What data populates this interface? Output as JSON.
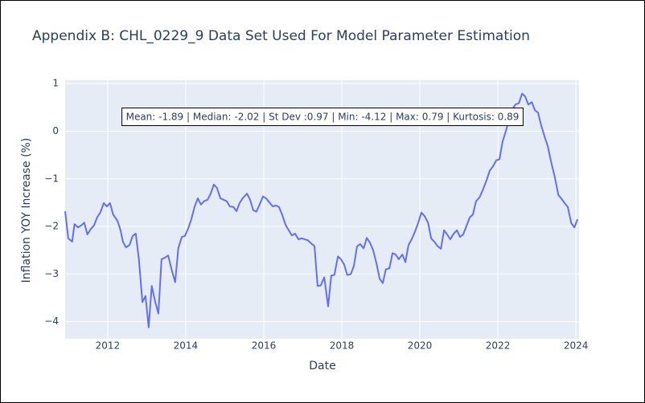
{
  "chart_data": {
    "type": "line",
    "title": "Appendix B: CHL_0229_9 Data Set Used For Model Parameter Estimation",
    "x_label": "Date",
    "y_label": "Inflation YOY Increase (%)",
    "annotation": "Mean: -1.89 | Median: -2.02 | St Dev :0.97 | Min: -4.12 | Max: 0.79 | Kurtosis: 0.89",
    "xlim": [
      2010.91,
      2024.08
    ],
    "xticks": [
      2012,
      2014,
      2016,
      2018,
      2020,
      2022,
      2024
    ],
    "ylim": [
      -4.36,
      1.07
    ],
    "yticks": [
      {
        "value": -4,
        "label": "−4"
      },
      {
        "value": -3,
        "label": "−3"
      },
      {
        "value": -2,
        "label": "−2"
      },
      {
        "value": -1,
        "label": "−1"
      },
      0,
      1
    ],
    "grid": true,
    "x": [
      2010.91,
      2010.99,
      2011.09,
      2011.15,
      2011.24,
      2011.32,
      2011.4,
      2011.48,
      2011.57,
      2011.65,
      2011.73,
      2011.81,
      2011.9,
      2011.98,
      2012.06,
      2012.14,
      2012.25,
      2012.33,
      2012.39,
      2012.47,
      2012.56,
      2012.64,
      2012.72,
      2012.8,
      2012.89,
      2012.97,
      2013.05,
      2013.13,
      2013.22,
      2013.3,
      2013.38,
      2013.46,
      2013.55,
      2013.63,
      2013.73,
      2013.81,
      2013.9,
      2013.98,
      2014.06,
      2014.14,
      2014.23,
      2014.31,
      2014.39,
      2014.47,
      2014.56,
      2014.64,
      2014.72,
      2014.8,
      2014.89,
      2014.97,
      2015.05,
      2015.13,
      2015.22,
      2015.3,
      2015.38,
      2015.46,
      2015.57,
      2015.65,
      2015.73,
      2015.81,
      2015.9,
      2015.98,
      2016.06,
      2016.14,
      2016.23,
      2016.31,
      2016.39,
      2016.47,
      2016.56,
      2016.64,
      2016.72,
      2016.8,
      2016.89,
      2016.97,
      2017.05,
      2017.13,
      2017.22,
      2017.3,
      2017.38,
      2017.46,
      2017.55,
      2017.65,
      2017.73,
      2017.81,
      2017.9,
      2017.98,
      2018.06,
      2018.14,
      2018.23,
      2018.31,
      2018.39,
      2018.47,
      2018.56,
      2018.64,
      2018.72,
      2018.8,
      2018.89,
      2018.97,
      2019.05,
      2019.13,
      2019.22,
      2019.3,
      2019.38,
      2019.46,
      2019.55,
      2019.63,
      2019.71,
      2019.79,
      2019.88,
      2019.96,
      2020.04,
      2020.12,
      2020.21,
      2020.29,
      2020.37,
      2020.45,
      2020.54,
      2020.62,
      2020.7,
      2020.78,
      2020.87,
      2020.95,
      2021.03,
      2021.11,
      2021.2,
      2021.28,
      2021.36,
      2021.44,
      2021.53,
      2021.61,
      2021.71,
      2021.79,
      2021.88,
      2021.96,
      2022.04,
      2022.12,
      2022.21,
      2022.29,
      2022.37,
      2022.45,
      2022.54,
      2022.62,
      2022.7,
      2022.78,
      2022.87,
      2022.95,
      2023.03,
      2023.11,
      2023.2,
      2023.28,
      2023.36,
      2023.46,
      2023.55,
      2023.63,
      2023.71,
      2023.79,
      2023.88,
      2023.96,
      2024.04
    ],
    "series": [
      {
        "color": "#636efa",
        "values": [
          -1.68,
          -2.25,
          -2.32,
          -1.95,
          -2.02,
          -1.98,
          -1.92,
          -2.17,
          -2.05,
          -1.98,
          -1.81,
          -1.71,
          -1.51,
          -1.58,
          -1.51,
          -1.75,
          -1.88,
          -2.08,
          -2.32,
          -2.44,
          -2.39,
          -2.2,
          -2.15,
          -2.69,
          -3.59,
          -3.46,
          -4.12,
          -3.25,
          -3.59,
          -3.83,
          -2.69,
          -2.66,
          -2.61,
          -2.88,
          -3.17,
          -2.46,
          -2.22,
          -2.2,
          -2.05,
          -1.86,
          -1.58,
          -1.41,
          -1.54,
          -1.47,
          -1.44,
          -1.31,
          -1.12,
          -1.19,
          -1.41,
          -1.44,
          -1.47,
          -1.58,
          -1.59,
          -1.68,
          -1.51,
          -1.41,
          -1.31,
          -1.44,
          -1.66,
          -1.69,
          -1.53,
          -1.37,
          -1.41,
          -1.49,
          -1.58,
          -1.56,
          -1.59,
          -1.75,
          -1.97,
          -2.08,
          -2.19,
          -2.15,
          -2.27,
          -2.25,
          -2.27,
          -2.29,
          -2.36,
          -2.41,
          -3.25,
          -3.24,
          -3.07,
          -3.68,
          -3.03,
          -3.02,
          -2.63,
          -2.69,
          -2.8,
          -3.02,
          -3.0,
          -2.83,
          -2.42,
          -2.37,
          -2.46,
          -2.24,
          -2.34,
          -2.49,
          -2.78,
          -3.1,
          -3.19,
          -2.9,
          -2.88,
          -2.56,
          -2.59,
          -2.69,
          -2.59,
          -2.75,
          -2.39,
          -2.27,
          -2.1,
          -1.92,
          -1.71,
          -1.78,
          -1.92,
          -2.25,
          -2.32,
          -2.41,
          -2.47,
          -2.08,
          -2.17,
          -2.27,
          -2.15,
          -2.08,
          -2.22,
          -2.17,
          -1.98,
          -1.81,
          -1.75,
          -1.47,
          -1.39,
          -1.24,
          -1.03,
          -0.83,
          -0.73,
          -0.61,
          -0.59,
          -0.22,
          0.02,
          0.25,
          0.46,
          0.56,
          0.59,
          0.79,
          0.73,
          0.56,
          0.61,
          0.44,
          0.39,
          0.12,
          -0.12,
          -0.32,
          -0.63,
          -0.97,
          -1.34,
          -1.42,
          -1.51,
          -1.59,
          -1.93,
          -2.02,
          -1.85
        ]
      }
    ]
  }
}
